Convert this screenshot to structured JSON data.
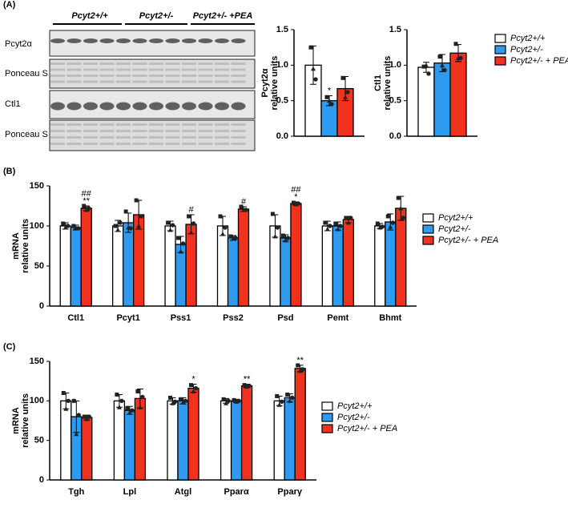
{
  "panel_labels": [
    "(A)",
    "(B)",
    "(C)"
  ],
  "blot": {
    "groups": [
      "Pcyt2+/+",
      "Pcyt2+/-",
      "Pcyt2+/- +PEA"
    ],
    "rows": [
      "Pcyt2α",
      "Ponceau S",
      "Ctl1",
      "Ponceau S"
    ]
  },
  "chart_data": [
    {
      "type": "bar",
      "y_label": [
        "Pcyt2α",
        "relative units"
      ],
      "ylim": [
        0,
        1.5
      ],
      "yticks": [
        {
          "value": 0,
          "label": "0.0"
        },
        {
          "value": 0.5,
          "label": "0.5"
        },
        {
          "value": 1,
          "label": "1.0"
        },
        {
          "value": 1.5,
          "label": "1.5"
        }
      ],
      "series": [
        {
          "color": "#ffffff",
          "values": [
            1.0
          ],
          "errors": [
            0.27
          ],
          "points": [
            [
              1.25,
              0.95,
              0.8
            ]
          ]
        },
        {
          "color": "#2e9bf0",
          "values": [
            0.5
          ],
          "errors": [
            0.07
          ],
          "points": [
            [
              0.55,
              0.5,
              0.45
            ]
          ],
          "annotations": [
            [
              "*"
            ]
          ]
        },
        {
          "color": "#f0321e",
          "values": [
            0.67
          ],
          "errors": [
            0.17
          ],
          "points": [
            [
              0.82,
              0.55,
              0.62
            ]
          ]
        }
      ]
    },
    {
      "type": "bar",
      "y_label": [
        "Ctl1",
        "relative units"
      ],
      "ylim": [
        0,
        1.5
      ],
      "yticks": [
        {
          "value": 0,
          "label": "0.0"
        },
        {
          "value": 0.5,
          "label": "0.5"
        },
        {
          "value": 1,
          "label": "1.0"
        },
        {
          "value": 1.5,
          "label": "1.5"
        }
      ],
      "legend": "right",
      "series": [
        {
          "name": "Pcyt2+/+",
          "color": "#ffffff",
          "values": [
            0.97
          ],
          "errors": [
            0.07
          ],
          "points": [
            [
              0.98,
              1.0,
              0.88
            ]
          ]
        },
        {
          "name": "Pcyt2+/-",
          "color": "#2e9bf0",
          "values": [
            1.03
          ],
          "errors": [
            0.12
          ],
          "points": [
            [
              1.12,
              1.0,
              0.93
            ]
          ]
        },
        {
          "name": "Pcyt2+/- + PEA",
          "color": "#f0321e",
          "values": [
            1.17
          ],
          "errors": [
            0.12
          ],
          "points": [
            [
              1.3,
              1.1,
              1.1
            ]
          ]
        }
      ]
    },
    {
      "type": "bar",
      "y_label": [
        "mRNA",
        "relative units"
      ],
      "ylim": [
        0,
        150
      ],
      "yticks": [
        0,
        50,
        100,
        150
      ],
      "legend": "right",
      "categories": [
        "Ctl1",
        "Pcyt1",
        "Pss1",
        "Pss2",
        "Psd",
        "Pemt",
        "Bhmt"
      ],
      "series": [
        {
          "name": "Pcyt2+/+",
          "color": "#ffffff",
          "values": [
            100,
            100,
            100,
            100,
            100,
            100,
            100
          ],
          "errors": [
            4,
            7,
            6,
            12,
            14,
            6,
            3
          ],
          "points": [
            [
              103,
              98,
              100
            ],
            [
              100,
              95,
              104
            ],
            [
              104,
              95,
              101
            ],
            [
              112,
              90,
              98
            ],
            [
              115,
              87,
              98
            ],
            [
              104,
              96,
              100
            ],
            [
              103,
              98,
              99
            ]
          ]
        },
        {
          "name": "Pcyt2+/-",
          "color": "#2e9bf0",
          "values": [
            98,
            104,
            77,
            85,
            85,
            100,
            105
          ],
          "errors": [
            3,
            12,
            10,
            3,
            4,
            5,
            10
          ],
          "points": [
            [
              100,
              98,
              97
            ],
            [
              118,
              98,
              97
            ],
            [
              85,
              68,
              78
            ],
            [
              87,
              84,
              85
            ],
            [
              88,
              82,
              85
            ],
            [
              103,
              96,
              100
            ],
            [
              112,
              99,
              104
            ]
          ]
        },
        {
          "name": "Pcyt2+/- + PEA",
          "color": "#f0321e",
          "values": [
            122,
            114,
            102,
            121,
            128,
            108,
            122
          ],
          "errors": [
            3,
            18,
            12,
            3,
            2,
            4,
            15
          ],
          "points": [
            [
              125,
              120,
              122
            ],
            [
              132,
              100,
              112
            ],
            [
              112,
              92,
              103
            ],
            [
              124,
              120,
              120
            ],
            [
              129,
              127,
              128
            ],
            [
              110,
              104,
              110
            ],
            [
              135,
              122,
              110
            ]
          ],
          "annotations": [
            [
              "##",
              "**"
            ],
            null,
            [
              "#"
            ],
            [
              "#"
            ],
            [
              "##",
              "*"
            ],
            null,
            null
          ]
        }
      ]
    },
    {
      "type": "bar",
      "y_label": [
        "mRNA",
        "relative units"
      ],
      "ylim": [
        0,
        150
      ],
      "yticks": [
        0,
        50,
        100,
        150
      ],
      "legend": "right",
      "categories": [
        "Tgh",
        "Lpl",
        "Atgl",
        "Pparα",
        "Pparγ"
      ],
      "series": [
        {
          "name": "Pcyt2+/+",
          "color": "#ffffff",
          "values": [
            100,
            100,
            100,
            100,
            100
          ],
          "errors": [
            10,
            8,
            4,
            3,
            6
          ],
          "points": [
            [
              110,
              90,
              100
            ],
            [
              108,
              92,
              100
            ],
            [
              104,
              97,
              99
            ],
            [
              102,
              97,
              100
            ],
            [
              106,
              95,
              99
            ]
          ]
        },
        {
          "name": "Pcyt2+/-",
          "color": "#2e9bf0",
          "values": [
            80,
            88,
            100,
            100,
            104
          ],
          "errors": [
            20,
            5,
            4,
            2,
            5
          ],
          "points": [
            [
              100,
              58,
              82
            ],
            [
              91,
              85,
              88
            ],
            [
              102,
              98,
              100
            ],
            [
              101,
              99,
              100
            ],
            [
              108,
              100,
              104
            ]
          ]
        },
        {
          "name": "Pcyt2+/- + PEA",
          "color": "#f0321e",
          "values": [
            79,
            103,
            116,
            119,
            141
          ],
          "errors": [
            3,
            12,
            5,
            2,
            4
          ],
          "points": [
            [
              80,
              77,
              80
            ],
            [
              112,
              92,
              105
            ],
            [
              120,
              112,
              116
            ],
            [
              120,
              118,
              119
            ],
            [
              145,
              138,
              140
            ]
          ],
          "annotations": [
            null,
            null,
            [
              "*"
            ],
            [
              "**"
            ],
            [
              "**"
            ]
          ]
        }
      ]
    }
  ]
}
